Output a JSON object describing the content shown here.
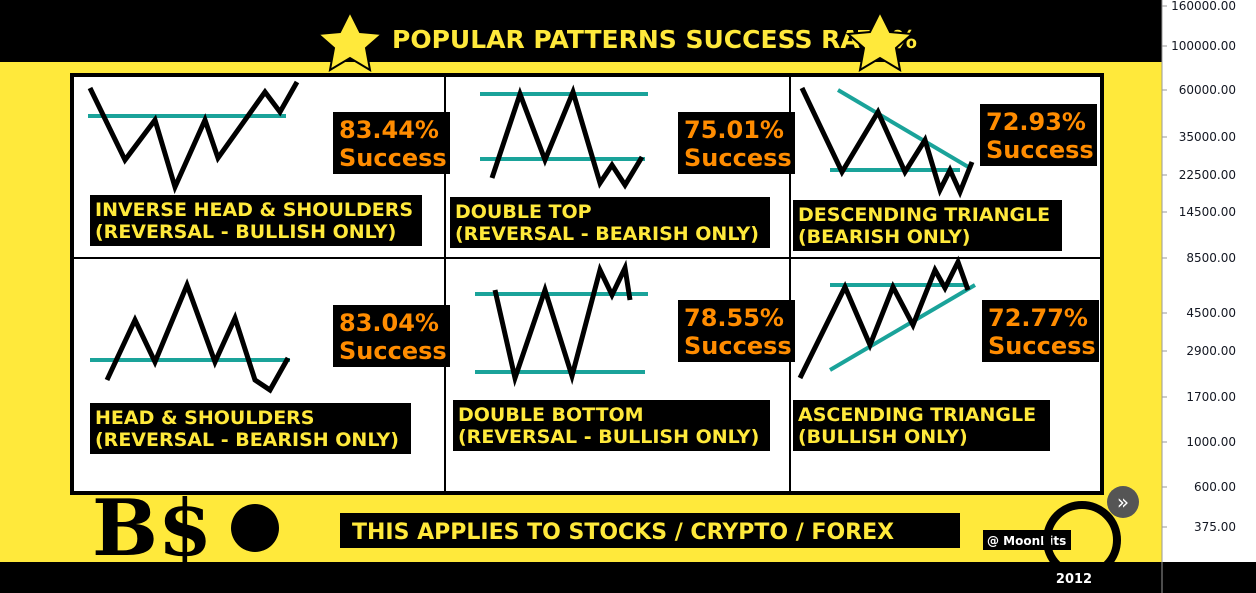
{
  "header": {
    "title": "POPULAR  PATTERNS  SUCCESS  RATE%"
  },
  "patterns": [
    {
      "name": "INVERSE HEAD & SHOULDERS",
      "kind": "(REVERSAL - BULLISH ONLY)",
      "rate": "83.44%",
      "label": "Success"
    },
    {
      "name": "DOUBLE TOP",
      "kind": "(REVERSAL - BEARISH ONLY)",
      "rate": "75.01%",
      "label": "Success"
    },
    {
      "name": "DESCENDING TRIANGLE",
      "kind": "(BEARISH ONLY)",
      "rate": "72.93%",
      "label": "Success"
    },
    {
      "name": "HEAD & SHOULDERS",
      "kind": "(REVERSAL - BEARISH ONLY)",
      "rate": "83.04%",
      "label": "Success"
    },
    {
      "name": "DOUBLE BOTTOM",
      "kind": "(REVERSAL - BULLISH ONLY)",
      "rate": "78.55%",
      "label": "Success"
    },
    {
      "name": "ASCENDING TRIANGLE",
      "kind": "(BULLISH ONLY)",
      "rate": "72.77%",
      "label": "Success"
    }
  ],
  "footer": {
    "logo": "B$",
    "note": "THIS  APPLIES  TO  STOCKS / CRYPTO / FOREX",
    "credit": "@ MoonBits",
    "year": "2012",
    "nav": "»"
  },
  "price_axis": [
    "160000.00",
    "100000.00",
    "60000.00",
    "35000.00",
    "22500.00",
    "14500.00",
    "8500.00",
    "4500.00",
    "2900.00",
    "1700.00",
    "1000.00",
    "600.00",
    "375.00"
  ]
}
